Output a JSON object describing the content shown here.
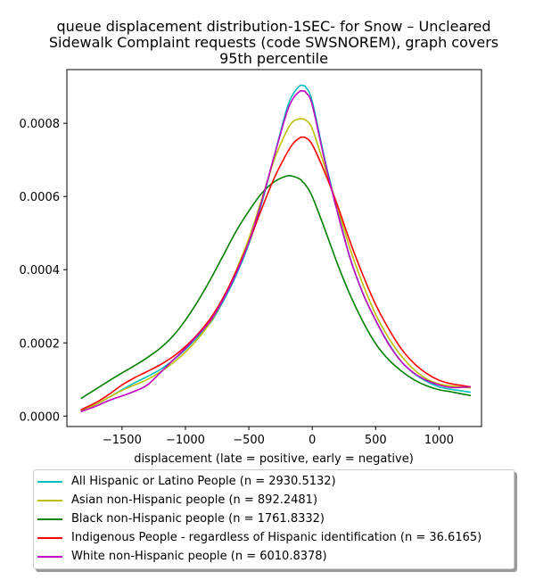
{
  "chart_data": {
    "type": "line",
    "title_lines": [
      "queue displacement distribution-1SEC-  for Snow – Uncleared",
      "Sidewalk Complaint  requests (code SWSNOREM), graph covers",
      "95th percentile"
    ],
    "xlabel": "displacement (late = positive, early = negative)",
    "ylabel": "",
    "xlim": [
      -1935,
      1335
    ],
    "ylim": [
      -2.85e-05,
      0.0009466
    ],
    "x_ticks": [
      -1500,
      -1000,
      -500,
      0,
      500,
      1000
    ],
    "x_tick_labels": [
      "−1500",
      "−1000",
      "−500",
      "0",
      "500",
      "1000"
    ],
    "y_ticks": [
      0.0,
      0.0002,
      0.0004,
      0.0006,
      0.0008
    ],
    "y_tick_labels": [
      "0.0000",
      "0.0002",
      "0.0004",
      "0.0006",
      "0.0008"
    ],
    "grid": false,
    "legend_position": "below",
    "x": [
      -1825,
      -1700,
      -1600,
      -1500,
      -1400,
      -1300,
      -1200,
      -1100,
      -1000,
      -900,
      -800,
      -700,
      -600,
      -500,
      -400,
      -300,
      -200,
      -150,
      -100,
      -75,
      -50,
      0,
      100,
      200,
      300,
      400,
      500,
      600,
      700,
      800,
      900,
      1000,
      1100,
      1250
    ],
    "series": [
      {
        "name": "All Hispanic or Latino People (n = 2930.5132)",
        "color": "#00bfbf",
        "values": [
          1.5e-05,
          3.3e-05,
          5.2e-05,
          7.2e-05,
          9.1e-05,
          0.000108,
          0.000127,
          0.000152,
          0.000182,
          0.000218,
          0.000256,
          0.000315,
          0.000385,
          0.00047,
          0.00058,
          0.00071,
          0.00084,
          0.00088,
          0.000902,
          0.000903,
          0.000898,
          0.00086,
          0.0007,
          0.00056,
          0.00043,
          0.000335,
          0.000262,
          0.0002,
          0.00015,
          0.000117,
          9.5e-05,
          8e-05,
          7.3e-05,
          6.5e-05
        ]
      },
      {
        "name": "Asian non-Hispanic people (n = 892.2481)",
        "color": "#bfbf00",
        "values": [
          1.5e-05,
          3.3e-05,
          5.2e-05,
          7e-05,
          8.5e-05,
          0.0001,
          0.00012,
          0.000145,
          0.000175,
          0.000212,
          0.000258,
          0.00032,
          0.000398,
          0.000485,
          0.00059,
          0.0007,
          0.00078,
          0.000805,
          0.000812,
          0.000812,
          0.000808,
          0.000785,
          0.00068,
          0.00057,
          0.000455,
          0.00036,
          0.000278,
          0.000215,
          0.000165,
          0.000128,
          0.000102,
          8.8e-05,
          8.2e-05,
          7.7e-05
        ]
      },
      {
        "name": "Black non-Hispanic people (n = 1761.8332)",
        "color": "#008000",
        "values": [
          4.8e-05,
          7.5e-05,
          9.7e-05,
          0.000118,
          0.000138,
          0.00016,
          0.000185,
          0.000218,
          0.000262,
          0.000315,
          0.000375,
          0.00044,
          0.000505,
          0.00056,
          0.000608,
          0.00064,
          0.000656,
          0.000655,
          0.000648,
          0.00064,
          0.00063,
          0.0006,
          0.00051,
          0.000415,
          0.00033,
          0.000258,
          0.000198,
          0.000155,
          0.000124,
          0.0001,
          8.3e-05,
          7.2e-05,
          6.6e-05,
          5.6e-05
        ]
      },
      {
        "name": "Indigenous People - regardless of Hispanic identification (n = 36.6165)",
        "color": "#ff0000",
        "values": [
          1.7e-05,
          3.8e-05,
          6e-05,
          8.5e-05,
          0.000105,
          0.000122,
          0.00014,
          0.000162,
          0.00019,
          0.000225,
          0.000268,
          0.000325,
          0.000395,
          0.000475,
          0.000565,
          0.00065,
          0.000718,
          0.000745,
          0.00076,
          0.000762,
          0.00076,
          0.000742,
          0.000665,
          0.000575,
          0.000475,
          0.000385,
          0.000305,
          0.00024,
          0.000185,
          0.000145,
          0.000117,
          9.8e-05,
          8.8e-05,
          8e-05
        ]
      },
      {
        "name": "White non-Hispanic people (n = 6010.8378)",
        "color": "#bf00bf",
        "values": [
          1.2e-05,
          2.8e-05,
          4.3e-05,
          5.5e-05,
          6.8e-05,
          8.5e-05,
          0.000118,
          0.000152,
          0.000185,
          0.000222,
          0.000262,
          0.00032,
          0.00039,
          0.000475,
          0.000585,
          0.00071,
          0.00083,
          0.000868,
          0.000887,
          0.000888,
          0.000884,
          0.00085,
          0.000695,
          0.000555,
          0.00043,
          0.000335,
          0.000262,
          0.000198,
          0.00015,
          0.000118,
          9.8e-05,
          8.5e-05,
          7.8e-05,
          8e-05
        ]
      }
    ]
  }
}
